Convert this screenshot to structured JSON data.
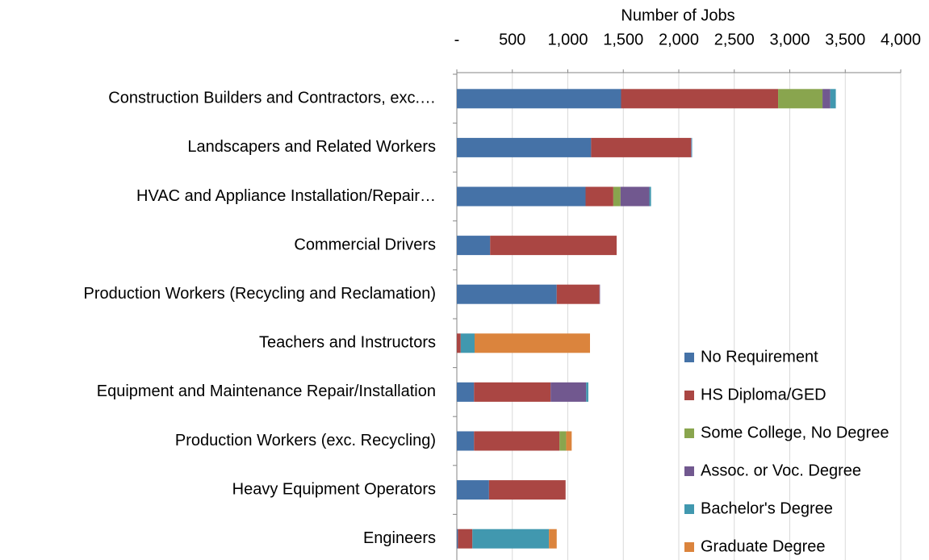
{
  "chart_data": {
    "type": "stacked_bar_horizontal",
    "x_label": "Number of Jobs",
    "categories": [
      "Construction Builders and Contractors, exc.…",
      "Landscapers and Related Workers",
      "HVAC and Appliance Installation/Repair…",
      "Commercial Drivers",
      "Production Workers (Recycling and Reclamation)",
      "Teachers and Instructors",
      "Equipment and Maintenance Repair/Installation",
      "Production Workers (exc. Recycling)",
      "Heavy Equipment Operators",
      "Engineers"
    ],
    "series": [
      {
        "name": "No Requirement",
        "color": "#4572a7",
        "values": [
          1480,
          1210,
          1160,
          300,
          900,
          0,
          155,
          155,
          290,
          10
        ]
      },
      {
        "name": "HS Diploma/GED",
        "color": "#aa4643",
        "values": [
          1415,
          900,
          250,
          1140,
          385,
          35,
          690,
          770,
          690,
          130
        ]
      },
      {
        "name": "Some College, No Degree",
        "color": "#89a54e",
        "values": [
          400,
          0,
          65,
          0,
          0,
          0,
          0,
          60,
          0,
          0
        ]
      },
      {
        "name": "Assoc. or Voc. Degree",
        "color": "#71588f",
        "values": [
          70,
          5,
          260,
          0,
          5,
          0,
          320,
          0,
          0,
          0
        ]
      },
      {
        "name": "Bachelor's Degree",
        "color": "#4198af",
        "values": [
          50,
          5,
          15,
          0,
          0,
          125,
          20,
          0,
          0,
          690
        ]
      },
      {
        "name": "Graduate Degree",
        "color": "#db843d",
        "values": [
          0,
          0,
          0,
          0,
          0,
          1040,
          0,
          50,
          0,
          70
        ]
      }
    ],
    "xlim": [
      0,
      4000
    ],
    "xticks": [
      {
        "value": 0,
        "label": "-"
      },
      500,
      {
        "value": 1000,
        "label": "1,000"
      },
      {
        "value": 1500,
        "label": "1,500"
      },
      {
        "value": 2000,
        "label": "2,000"
      },
      {
        "value": 2500,
        "label": "2,500"
      },
      {
        "value": 3000,
        "label": "3,000"
      },
      {
        "value": 3500,
        "label": "3,500"
      },
      {
        "value": 4000,
        "label": "4,000"
      }
    ],
    "grid": true,
    "legend": "lower right"
  }
}
